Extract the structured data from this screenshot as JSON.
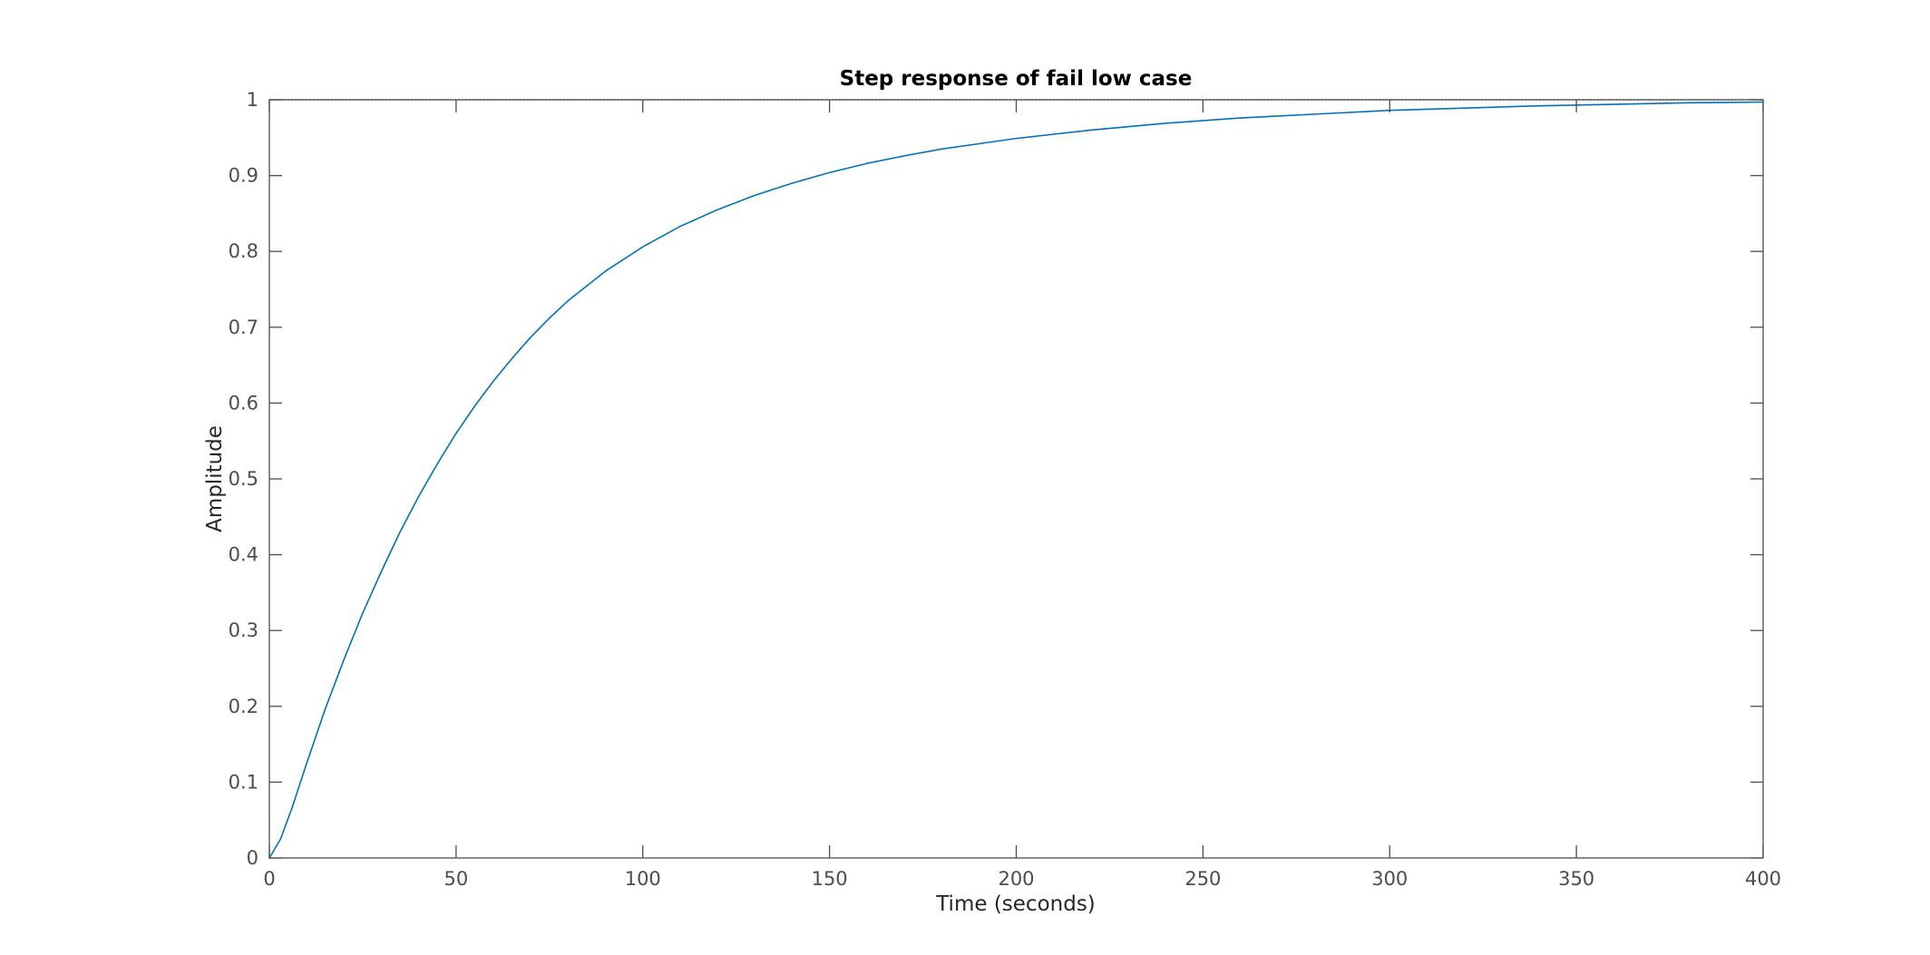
{
  "chart_data": {
    "type": "line",
    "title": "Step response of fail low case",
    "xlabel": "Time (seconds)",
    "ylabel": "Amplitude",
    "xlim": [
      0,
      400
    ],
    "ylim": [
      0,
      1
    ],
    "xticks": [
      0,
      50,
      100,
      150,
      200,
      250,
      300,
      350,
      400
    ],
    "yticks": [
      0,
      0.1,
      0.2,
      0.3,
      0.4,
      0.5,
      0.6,
      0.7,
      0.8,
      0.9,
      1
    ],
    "xtick_labels": [
      "0",
      "50",
      "100",
      "150",
      "200",
      "250",
      "300",
      "350",
      "400"
    ],
    "ytick_labels": [
      "0",
      "0.1",
      "0.2",
      "0.3",
      "0.4",
      "0.5",
      "0.6",
      "0.7",
      "0.8",
      "0.9",
      "1"
    ],
    "grid": false,
    "reference_line": {
      "y": 1,
      "style": "dotted",
      "color": "#000000"
    },
    "series": [
      {
        "color": "#0072bd",
        "x": [
          0,
          3,
          6,
          10,
          15,
          20,
          25,
          30,
          35,
          40,
          45,
          50,
          55,
          60,
          65,
          70,
          75,
          80,
          90,
          100,
          110,
          120,
          130,
          140,
          150,
          160,
          170,
          180,
          190,
          200,
          220,
          240,
          260,
          280,
          300,
          320,
          340,
          360,
          380,
          400
        ],
        "y": [
          0,
          0.025,
          0.065,
          0.125,
          0.197,
          0.262,
          0.323,
          0.378,
          0.43,
          0.477,
          0.52,
          0.56,
          0.596,
          0.629,
          0.659,
          0.687,
          0.712,
          0.735,
          0.774,
          0.806,
          0.833,
          0.855,
          0.874,
          0.89,
          0.904,
          0.916,
          0.926,
          0.935,
          0.942,
          0.949,
          0.96,
          0.969,
          0.976,
          0.981,
          0.986,
          0.989,
          0.992,
          0.994,
          0.996,
          0.997
        ]
      }
    ]
  }
}
